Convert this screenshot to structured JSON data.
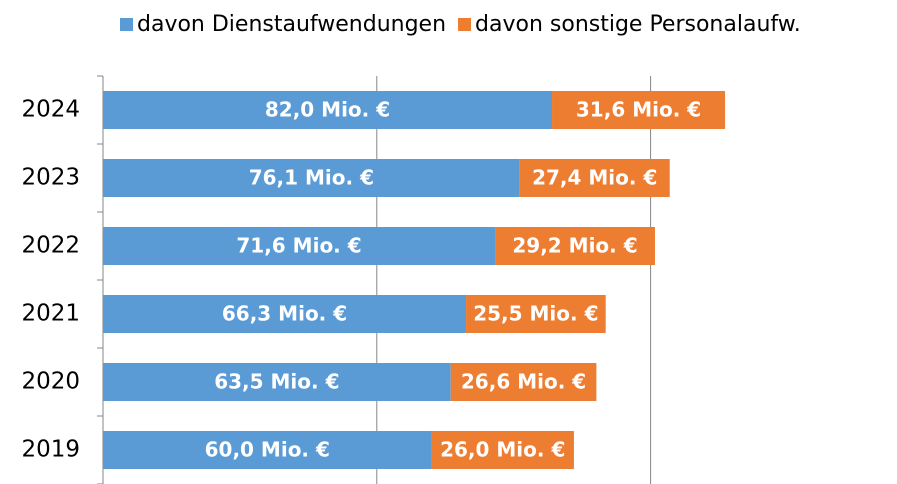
{
  "chart_data": {
    "type": "stacked-bar-horizontal",
    "categories": [
      "2024",
      "2023",
      "2022",
      "2021",
      "2020",
      "2019"
    ],
    "series": [
      {
        "name": "davon Dienstaufwendungen",
        "color": "#5b9bd5",
        "values": [
          82.0,
          76.1,
          71.6,
          66.3,
          63.5,
          60.0
        ],
        "value_labels": [
          "82,0 Mio. €",
          "76,1 Mio. €",
          "71,6 Mio. €",
          "66,3 Mio. €",
          "63,5 Mio. €",
          "60,0 Mio. €"
        ]
      },
      {
        "name": "davon sonstige Personalaufw.",
        "color": "#ed7d31",
        "values": [
          31.6,
          27.4,
          29.2,
          25.5,
          26.6,
          26.0
        ],
        "value_labels": [
          "31,6 Mio. €",
          "27,4 Mio. €",
          "29,2 Mio. €",
          "25,5 Mio. €",
          "26,6 Mio. €",
          "26,0 Mio. €"
        ]
      }
    ],
    "xlim": [
      0,
      145
    ],
    "xticks": [
      0,
      50,
      100
    ],
    "grid": true
  }
}
